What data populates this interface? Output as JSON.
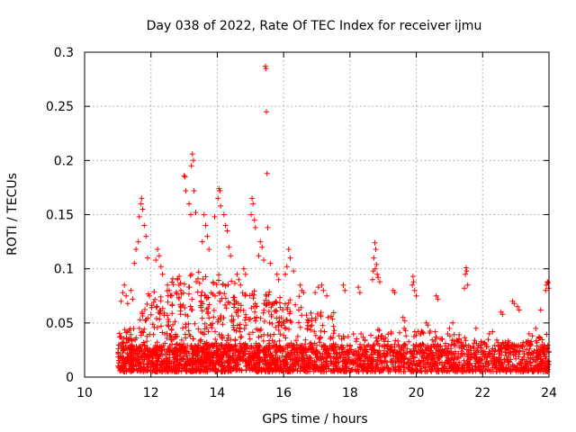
{
  "chart_data": {
    "type": "scatter",
    "title": "Day 038 of 2022, Rate Of TEC Index for receiver ijmu",
    "xlabel": "GPS time / hours",
    "ylabel": "ROTI / TECUs",
    "xlim": [
      10,
      24
    ],
    "ylim": [
      0,
      0.3
    ],
    "x_ticks": [
      10,
      12,
      14,
      16,
      18,
      20,
      22,
      24
    ],
    "x_tick_labels": [
      "10",
      "12",
      "14",
      "16",
      "18",
      "20",
      "22",
      "24"
    ],
    "y_ticks": [
      0,
      0.05,
      0.1,
      0.15,
      0.2,
      0.25,
      0.3
    ],
    "y_tick_labels": [
      "0",
      "0.05",
      "0.1",
      "0.15",
      "0.2",
      "0.25",
      "0.3"
    ],
    "grid": true,
    "marker": "plus",
    "marker_color": "#ff0000",
    "data_x_range": [
      11.0,
      24.0
    ],
    "series": [
      {
        "name": "ROTI",
        "points": [
          [
            15.45,
            0.287
          ],
          [
            15.47,
            0.285
          ],
          [
            15.48,
            0.245
          ],
          [
            15.5,
            0.188
          ],
          [
            15.52,
            0.138
          ],
          [
            13.25,
            0.206
          ],
          [
            13.28,
            0.2
          ],
          [
            13.22,
            0.195
          ],
          [
            13.0,
            0.186
          ],
          [
            13.03,
            0.185
          ],
          [
            13.05,
            0.172
          ],
          [
            13.3,
            0.172
          ],
          [
            13.15,
            0.16
          ],
          [
            13.35,
            0.152
          ],
          [
            13.2,
            0.15
          ],
          [
            14.05,
            0.174
          ],
          [
            14.08,
            0.172
          ],
          [
            14.02,
            0.165
          ],
          [
            14.1,
            0.158
          ],
          [
            13.92,
            0.148
          ],
          [
            11.72,
            0.165
          ],
          [
            11.7,
            0.16
          ],
          [
            11.75,
            0.155
          ],
          [
            11.65,
            0.148
          ],
          [
            11.8,
            0.14
          ],
          [
            11.85,
            0.13
          ],
          [
            11.62,
            0.125
          ],
          [
            11.55,
            0.118
          ],
          [
            11.9,
            0.11
          ],
          [
            11.5,
            0.105
          ],
          [
            15.05,
            0.165
          ],
          [
            15.08,
            0.16
          ],
          [
            15.02,
            0.15
          ],
          [
            15.12,
            0.145
          ],
          [
            15.15,
            0.138
          ],
          [
            14.2,
            0.15
          ],
          [
            14.25,
            0.14
          ],
          [
            14.3,
            0.135
          ],
          [
            14.35,
            0.12
          ],
          [
            14.4,
            0.112
          ],
          [
            12.2,
            0.118
          ],
          [
            12.25,
            0.112
          ],
          [
            12.15,
            0.108
          ],
          [
            12.3,
            0.102
          ],
          [
            12.35,
            0.095
          ],
          [
            13.6,
            0.15
          ],
          [
            13.65,
            0.14
          ],
          [
            13.7,
            0.13
          ],
          [
            13.55,
            0.125
          ],
          [
            13.75,
            0.118
          ],
          [
            15.3,
            0.125
          ],
          [
            15.35,
            0.12
          ],
          [
            15.25,
            0.112
          ],
          [
            15.4,
            0.108
          ],
          [
            15.6,
            0.105
          ],
          [
            16.15,
            0.118
          ],
          [
            16.2,
            0.11
          ],
          [
            16.1,
            0.102
          ],
          [
            16.3,
            0.098
          ],
          [
            16.05,
            0.095
          ],
          [
            18.75,
            0.124
          ],
          [
            18.78,
            0.118
          ],
          [
            18.72,
            0.11
          ],
          [
            18.8,
            0.104
          ],
          [
            18.7,
            0.098
          ],
          [
            18.85,
            0.092
          ],
          [
            18.9,
            0.088
          ],
          [
            18.68,
            0.09
          ],
          [
            18.82,
            0.095
          ],
          [
            18.76,
            0.1
          ],
          [
            21.5,
            0.101
          ],
          [
            21.52,
            0.098
          ],
          [
            21.48,
            0.095
          ],
          [
            21.55,
            0.085
          ],
          [
            21.45,
            0.082
          ],
          [
            19.9,
            0.093
          ],
          [
            19.92,
            0.088
          ],
          [
            19.88,
            0.085
          ],
          [
            19.95,
            0.08
          ],
          [
            20.0,
            0.075
          ],
          [
            23.95,
            0.088
          ],
          [
            23.97,
            0.087
          ],
          [
            23.92,
            0.085
          ],
          [
            23.99,
            0.082
          ],
          [
            23.9,
            0.08
          ],
          [
            17.15,
            0.085
          ],
          [
            17.05,
            0.083
          ],
          [
            17.2,
            0.08
          ],
          [
            16.95,
            0.078
          ],
          [
            17.3,
            0.075
          ],
          [
            17.8,
            0.085
          ],
          [
            17.85,
            0.08
          ],
          [
            18.25,
            0.083
          ],
          [
            18.3,
            0.078
          ],
          [
            19.3,
            0.08
          ],
          [
            19.35,
            0.078
          ],
          [
            20.6,
            0.075
          ],
          [
            20.65,
            0.072
          ],
          [
            22.55,
            0.06
          ],
          [
            22.6,
            0.058
          ],
          [
            22.9,
            0.07
          ],
          [
            22.95,
            0.068
          ],
          [
            23.05,
            0.065
          ],
          [
            23.1,
            0.062
          ],
          [
            23.75,
            0.062
          ],
          [
            11.2,
            0.085
          ],
          [
            11.15,
            0.078
          ],
          [
            11.25,
            0.075
          ],
          [
            11.1,
            0.07
          ],
          [
            11.3,
            0.068
          ],
          [
            11.4,
            0.08
          ],
          [
            11.45,
            0.072
          ],
          [
            12.5,
            0.085
          ],
          [
            12.55,
            0.08
          ],
          [
            12.6,
            0.075
          ],
          [
            12.8,
            0.09
          ],
          [
            12.85,
            0.085
          ],
          [
            12.9,
            0.08
          ],
          [
            14.6,
            0.095
          ],
          [
            14.65,
            0.09
          ],
          [
            14.7,
            0.085
          ],
          [
            14.8,
            0.1
          ],
          [
            14.85,
            0.095
          ],
          [
            15.8,
            0.095
          ],
          [
            15.85,
            0.09
          ],
          [
            16.5,
            0.085
          ],
          [
            16.55,
            0.08
          ],
          [
            16.6,
            0.078
          ],
          [
            19.6,
            0.055
          ],
          [
            19.65,
            0.052
          ],
          [
            20.3,
            0.05
          ],
          [
            20.35,
            0.048
          ],
          [
            21.0,
            0.045
          ],
          [
            21.1,
            0.05
          ],
          [
            21.8,
            0.045
          ],
          [
            22.2,
            0.04
          ],
          [
            22.3,
            0.042
          ],
          [
            23.4,
            0.04
          ],
          [
            23.5,
            0.038
          ],
          [
            23.6,
            0.045
          ]
        ]
      }
    ],
    "dense_bands": [
      {
        "x_start": 11.0,
        "x_end": 11.6,
        "y_low": 0.005,
        "y_high": 0.045,
        "density": 90
      },
      {
        "x_start": 11.6,
        "x_end": 12.6,
        "y_low": 0.005,
        "y_high": 0.08,
        "density": 150
      },
      {
        "x_start": 12.6,
        "x_end": 13.6,
        "y_low": 0.005,
        "y_high": 0.1,
        "density": 170
      },
      {
        "x_start": 13.6,
        "x_end": 14.6,
        "y_low": 0.005,
        "y_high": 0.095,
        "density": 170
      },
      {
        "x_start": 14.6,
        "x_end": 15.6,
        "y_low": 0.005,
        "y_high": 0.08,
        "density": 150
      },
      {
        "x_start": 15.6,
        "x_end": 16.6,
        "y_low": 0.005,
        "y_high": 0.075,
        "density": 140
      },
      {
        "x_start": 16.6,
        "x_end": 17.6,
        "y_low": 0.005,
        "y_high": 0.06,
        "density": 120
      },
      {
        "x_start": 17.6,
        "x_end": 18.6,
        "y_low": 0.005,
        "y_high": 0.04,
        "density": 100
      },
      {
        "x_start": 18.6,
        "x_end": 19.6,
        "y_low": 0.005,
        "y_high": 0.045,
        "density": 100
      },
      {
        "x_start": 19.6,
        "x_end": 20.6,
        "y_low": 0.005,
        "y_high": 0.045,
        "density": 100
      },
      {
        "x_start": 20.6,
        "x_end": 21.6,
        "y_low": 0.005,
        "y_high": 0.04,
        "density": 100
      },
      {
        "x_start": 21.6,
        "x_end": 22.6,
        "y_low": 0.005,
        "y_high": 0.035,
        "density": 90
      },
      {
        "x_start": 22.6,
        "x_end": 23.6,
        "y_low": 0.005,
        "y_high": 0.035,
        "density": 90
      },
      {
        "x_start": 23.6,
        "x_end": 24.0,
        "y_low": 0.005,
        "y_high": 0.04,
        "density": 50
      }
    ]
  }
}
